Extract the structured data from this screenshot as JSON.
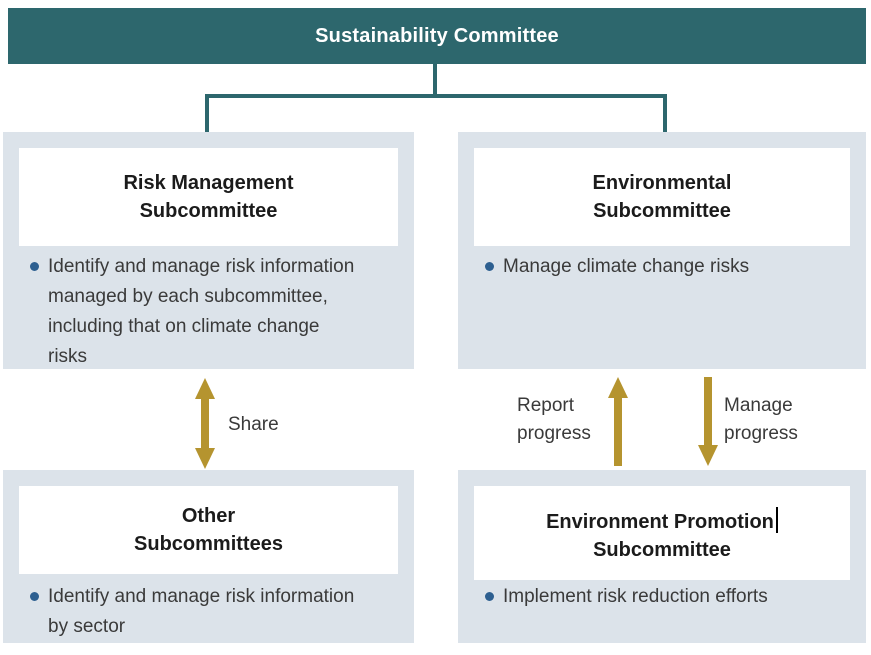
{
  "colors": {
    "header_teal": "#2d676d",
    "panel_bg": "#dce3ea",
    "arrow_gold": "#b5942f",
    "bullet_blue": "#2d5f90",
    "title_text": "#1b1b1b",
    "body_text": "#3a3a3a"
  },
  "header": {
    "title": "Sustainability Committee"
  },
  "boxes": {
    "risk": {
      "title_line1": "Risk Management",
      "title_line2": "Subcommittee",
      "bullet": "Identify and manage risk information\nmanaged by each subcommittee,\nincluding that on climate change\nrisks"
    },
    "environmental": {
      "title_line1": "Environmental",
      "title_line2": "Subcommittee",
      "bullet": "Manage climate change risks"
    },
    "other": {
      "title_line1": "Other",
      "title_line2": "Subcommittees",
      "bullet": "Identify and manage risk information\nby sector"
    },
    "promotion": {
      "title_line1": "Environment Promotion",
      "title_line2": "Subcommittee",
      "bullet": "Implement risk reduction efforts"
    }
  },
  "arrows": {
    "share": {
      "label": "Share"
    },
    "report": {
      "label": "Report\nprogress"
    },
    "manage": {
      "label": "Manage\nprogress"
    }
  }
}
